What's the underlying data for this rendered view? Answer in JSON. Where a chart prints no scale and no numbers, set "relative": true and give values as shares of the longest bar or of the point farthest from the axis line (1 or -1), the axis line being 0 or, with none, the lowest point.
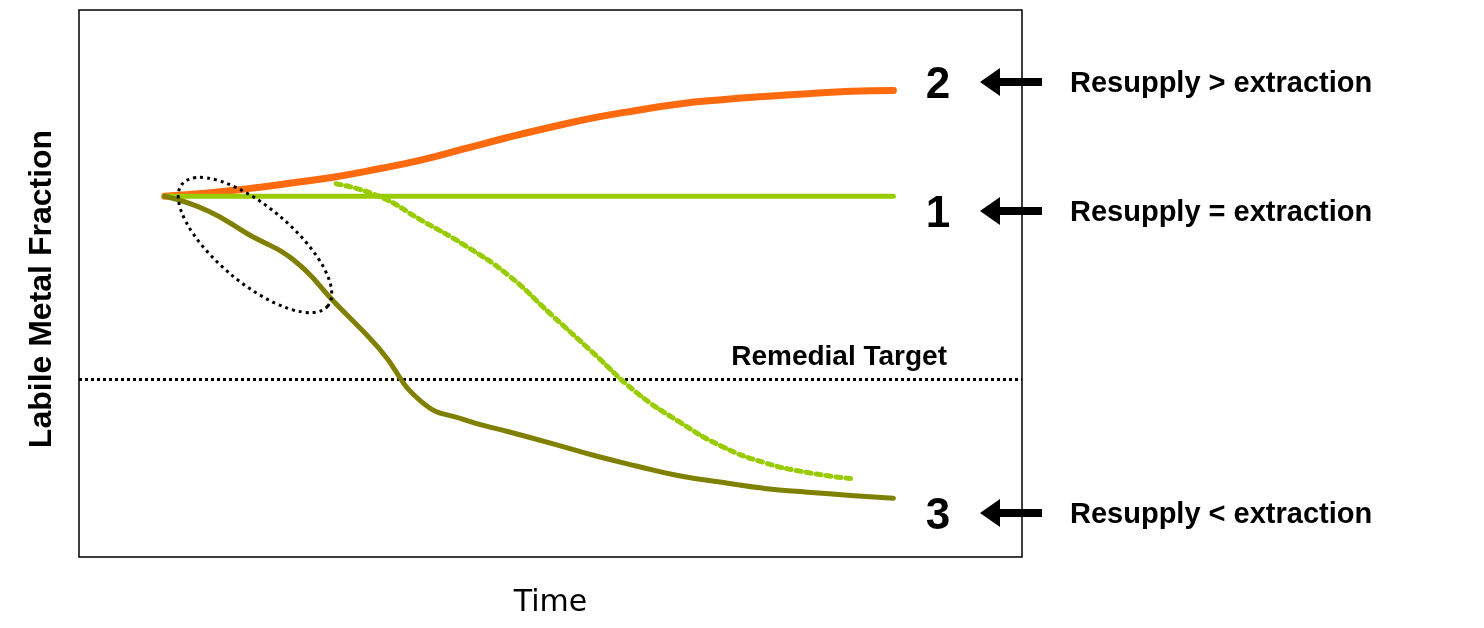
{
  "chart_data": {
    "type": "line",
    "relative": true,
    "xlabel": "Time",
    "ylabel": "Labile Metal Fraction",
    "categories": [
      null,
      null,
      null,
      null,
      null,
      null,
      null,
      null,
      null,
      null,
      null,
      null,
      null,
      null,
      null,
      null,
      null,
      null,
      null,
      null,
      null,
      null,
      null
    ],
    "series": [
      {
        "color": "#ff6a0e",
        "values": [
          null,
          null,
          0.773,
          0.78,
          0.79,
          0.802,
          0.815,
          0.832,
          0.851,
          0.875,
          0.899,
          0.921,
          0.941,
          0.957,
          0.971,
          0.98,
          0.987,
          0.993,
          0.998,
          1,
          null,
          null,
          null
        ]
      },
      {
        "color": "#99cc00",
        "values": [
          null,
          null,
          0.773,
          0.773,
          0.773,
          0.773,
          0.773,
          0.773,
          0.773,
          0.773,
          0.773,
          0.773,
          0.773,
          0.773,
          0.773,
          0.773,
          0.773,
          0.773,
          0.773,
          0.773,
          null,
          null,
          null
        ]
      },
      {
        "color": "#808000",
        "values": [
          null,
          null,
          0.773,
          0.742,
          0.689,
          0.637,
          0.542,
          0.447,
          0.332,
          0.294,
          0.269,
          0.244,
          0.218,
          0.195,
          0.174,
          0.16,
          0.147,
          0.139,
          0.132,
          0.126,
          null,
          null,
          null
        ]
      },
      {
        "color": "#99cc00",
        "line_style": "dotted",
        "values": [
          null,
          null,
          null,
          null,
          null,
          null,
          0.8,
          0.773,
          0.721,
          0.668,
          0.605,
          0.521,
          0.437,
          0.353,
          0.29,
          0.237,
          0.202,
          0.181,
          0.168,
          null,
          null,
          null,
          null
        ]
      }
    ],
    "ref_lines": [
      {
        "axis": "y",
        "value": 0.378,
        "label": "Remedial Target",
        "color": "#000000",
        "line_style": "dotted"
      }
    ],
    "annotations": [
      "2",
      "Resupply > extraction",
      "1",
      "Resupply = extraction",
      "3",
      "Resupply < extraction"
    ],
    "marker": "none",
    "grid": false
  }
}
